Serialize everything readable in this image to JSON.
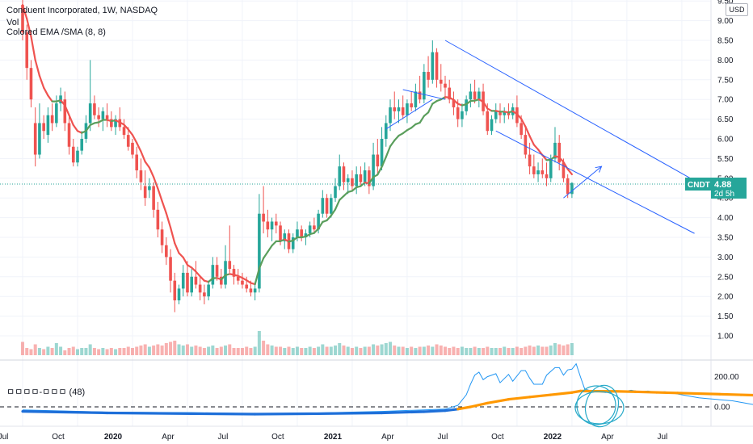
{
  "header": {
    "title": "Conduent Incorporated, 1W, NASDAQ",
    "vol_label": "Vol",
    "ema_label": "Colored EMA /SMA (8, 8)",
    "currency": "USD",
    "oscillator_label": "ㅁㅁㅁㅁ-ㅁㅁㅁ (48)"
  },
  "price_badge": {
    "symbol": "CNDT",
    "price": "4.88",
    "countdown": "2d 5h",
    "color": "#26a69a"
  },
  "colors": {
    "up": "#26a69a",
    "down": "#ef5350",
    "ema_down": "#ef5350",
    "ema_up": "#5a9e5c",
    "channel": "#2962ff",
    "osc_line": "#2196f3",
    "osc_smooth_up": "#ff9800",
    "osc_smooth_down": "#1e6fd9"
  },
  "chart_data": {
    "type": "candlestick",
    "price_ticks": [
      "9.50",
      "9.00",
      "8.50",
      "8.00",
      "7.50",
      "7.00",
      "6.50",
      "6.00",
      "5.50",
      "5.00",
      "4.50",
      "4.00",
      "3.50",
      "3.00",
      "2.50",
      "2.00",
      "1.50",
      "1.00"
    ],
    "osc_ticks": [
      "200.00",
      "0.00"
    ],
    "x_ticks": [
      {
        "label": "Jul",
        "bold": false
      },
      {
        "label": "Oct",
        "bold": false
      },
      {
        "label": "2020",
        "bold": true
      },
      {
        "label": "Apr",
        "bold": false
      },
      {
        "label": "Jul",
        "bold": false
      },
      {
        "label": "Oct",
        "bold": false
      },
      {
        "label": "2021",
        "bold": true
      },
      {
        "label": "Apr",
        "bold": false
      },
      {
        "label": "Jul",
        "bold": false
      },
      {
        "label": "Oct",
        "bold": false
      },
      {
        "label": "2022",
        "bold": true
      },
      {
        "label": "Apr",
        "bold": false
      },
      {
        "label": "Jul",
        "bold": false
      }
    ],
    "x_tick_weeks": [
      0,
      13,
      26,
      39,
      52,
      65,
      78,
      91,
      104,
      117,
      130,
      143,
      156
    ],
    "ohlc": [
      [
        9.4,
        9.6,
        8.5,
        8.7
      ],
      [
        8.7,
        8.9,
        7.5,
        7.8
      ],
      [
        7.8,
        8.0,
        6.8,
        7.0
      ],
      [
        6.4,
        6.8,
        5.3,
        5.6
      ],
      [
        5.6,
        6.9,
        5.5,
        6.4
      ],
      [
        6.4,
        6.6,
        6.0,
        6.2
      ],
      [
        6.1,
        6.8,
        5.9,
        6.6
      ],
      [
        6.6,
        6.9,
        6.2,
        6.4
      ],
      [
        6.4,
        7.1,
        6.3,
        6.9
      ],
      [
        6.9,
        7.3,
        6.7,
        7.1
      ],
      [
        7.0,
        7.2,
        6.2,
        6.4
      ],
      [
        6.4,
        6.6,
        5.6,
        5.8
      ],
      [
        5.8,
        6.0,
        5.3,
        5.4
      ],
      [
        5.4,
        5.8,
        5.3,
        5.7
      ],
      [
        5.7,
        6.2,
        5.6,
        6.0
      ],
      [
        6.0,
        6.6,
        5.9,
        6.4
      ],
      [
        6.4,
        8.0,
        6.2,
        6.9
      ],
      [
        6.9,
        7.1,
        6.5,
        6.6
      ],
      [
        6.6,
        6.8,
        6.3,
        6.5
      ],
      [
        6.5,
        6.8,
        6.2,
        6.7
      ],
      [
        6.6,
        6.9,
        6.3,
        6.5
      ],
      [
        6.5,
        6.7,
        6.2,
        6.3
      ],
      [
        6.3,
        6.6,
        6.1,
        6.5
      ],
      [
        6.5,
        6.8,
        6.2,
        6.3
      ],
      [
        6.3,
        6.5,
        6.0,
        6.1
      ],
      [
        6.1,
        6.3,
        5.7,
        5.8
      ],
      [
        5.9,
        6.0,
        5.5,
        5.6
      ],
      [
        5.6,
        5.8,
        5.0,
        5.2
      ],
      [
        5.2,
        5.5,
        4.7,
        4.9
      ],
      [
        4.8,
        5.2,
        4.3,
        4.5
      ],
      [
        4.7,
        5.0,
        4.5,
        4.8
      ],
      [
        4.8,
        4.9,
        4.0,
        4.2
      ],
      [
        4.2,
        4.4,
        3.5,
        3.7
      ],
      [
        3.7,
        3.9,
        3.1,
        3.3
      ],
      [
        3.3,
        3.5,
        2.8,
        3.0
      ],
      [
        3.0,
        3.2,
        2.1,
        2.4
      ],
      [
        2.4,
        2.6,
        1.6,
        1.9
      ],
      [
        1.9,
        2.3,
        1.8,
        2.2
      ],
      [
        2.2,
        2.8,
        2.0,
        2.6
      ],
      [
        2.6,
        2.9,
        2.0,
        2.1
      ],
      [
        2.1,
        2.7,
        2.0,
        2.5
      ],
      [
        2.5,
        2.9,
        2.2,
        2.3
      ],
      [
        2.3,
        2.5,
        1.9,
        2.1
      ],
      [
        2.1,
        2.3,
        1.8,
        2.0
      ],
      [
        2.0,
        2.4,
        1.9,
        2.3
      ],
      [
        2.3,
        3.0,
        2.2,
        2.8
      ],
      [
        2.8,
        3.0,
        2.4,
        2.5
      ],
      [
        2.5,
        2.7,
        2.2,
        2.3
      ],
      [
        2.3,
        3.3,
        2.2,
        2.9
      ],
      [
        2.9,
        3.8,
        2.6,
        2.7
      ],
      [
        2.7,
        2.8,
        2.3,
        2.5
      ],
      [
        2.5,
        2.7,
        2.3,
        2.4
      ],
      [
        2.4,
        2.6,
        2.2,
        2.3
      ],
      [
        2.3,
        2.5,
        2.1,
        2.2
      ],
      [
        2.2,
        2.4,
        2.0,
        2.1
      ],
      [
        2.1,
        2.3,
        1.9,
        2.2
      ],
      [
        2.2,
        4.6,
        2.1,
        4.1
      ],
      [
        4.1,
        4.8,
        3.6,
        3.9
      ],
      [
        3.9,
        4.2,
        3.5,
        3.7
      ],
      [
        3.7,
        4.0,
        3.4,
        3.9
      ],
      [
        3.9,
        4.1,
        3.6,
        3.8
      ],
      [
        3.8,
        3.9,
        3.3,
        3.4
      ],
      [
        3.4,
        3.7,
        3.2,
        3.6
      ],
      [
        3.6,
        3.7,
        3.1,
        3.2
      ],
      [
        3.2,
        3.6,
        3.1,
        3.5
      ],
      [
        3.5,
        3.9,
        3.4,
        3.7
      ],
      [
        3.7,
        3.8,
        3.4,
        3.5
      ],
      [
        3.5,
        3.7,
        3.3,
        3.6
      ],
      [
        3.6,
        3.9,
        3.5,
        3.8
      ],
      [
        3.8,
        4.0,
        3.6,
        3.7
      ],
      [
        3.7,
        4.2,
        3.6,
        4.1
      ],
      [
        4.1,
        4.7,
        4.0,
        4.5
      ],
      [
        4.5,
        4.6,
        4.0,
        4.1
      ],
      [
        4.1,
        4.6,
        4.0,
        4.5
      ],
      [
        4.5,
        5.0,
        4.4,
        4.8
      ],
      [
        4.8,
        5.6,
        4.7,
        5.3
      ],
      [
        5.3,
        5.4,
        4.7,
        4.9
      ],
      [
        4.9,
        5.1,
        4.6,
        5.0
      ],
      [
        5.0,
        5.2,
        4.7,
        4.8
      ],
      [
        4.8,
        5.3,
        4.6,
        5.1
      ],
      [
        5.1,
        5.3,
        4.8,
        4.9
      ],
      [
        4.9,
        5.4,
        4.8,
        5.2
      ],
      [
        5.2,
        5.3,
        4.6,
        4.8
      ],
      [
        4.8,
        5.9,
        4.7,
        5.6
      ],
      [
        5.6,
        6.0,
        5.1,
        5.3
      ],
      [
        5.3,
        6.3,
        5.2,
        6.0
      ],
      [
        6.0,
        6.6,
        5.8,
        6.4
      ],
      [
        6.4,
        7.0,
        6.2,
        6.8
      ],
      [
        6.8,
        7.2,
        6.5,
        6.7
      ],
      [
        6.7,
        7.0,
        6.4,
        6.8
      ],
      [
        6.8,
        7.1,
        6.5,
        6.6
      ],
      [
        6.6,
        7.0,
        6.4,
        6.9
      ],
      [
        6.9,
        7.2,
        6.7,
        6.8
      ],
      [
        6.8,
        7.4,
        6.7,
        7.2
      ],
      [
        7.2,
        7.6,
        6.9,
        7.0
      ],
      [
        7.0,
        7.9,
        6.9,
        7.7
      ],
      [
        7.7,
        8.1,
        7.3,
        7.5
      ],
      [
        7.5,
        8.5,
        7.4,
        8.2
      ],
      [
        8.2,
        8.3,
        7.3,
        7.5
      ],
      [
        7.5,
        7.9,
        7.2,
        7.4
      ],
      [
        7.4,
        7.6,
        7.0,
        7.3
      ],
      [
        7.3,
        7.5,
        6.9,
        7.0
      ],
      [
        7.0,
        7.2,
        6.6,
        6.8
      ],
      [
        6.8,
        7.0,
        6.3,
        6.5
      ],
      [
        6.5,
        6.9,
        6.3,
        6.7
      ],
      [
        6.7,
        7.1,
        6.6,
        7.0
      ],
      [
        7.0,
        7.4,
        6.8,
        7.2
      ],
      [
        7.2,
        7.5,
        6.9,
        7.0
      ],
      [
        7.0,
        7.3,
        6.8,
        7.2
      ],
      [
        7.2,
        7.4,
        6.6,
        6.7
      ],
      [
        6.7,
        6.9,
        6.1,
        6.2
      ],
      [
        6.2,
        6.6,
        6.1,
        6.5
      ],
      [
        6.5,
        6.9,
        6.4,
        6.7
      ],
      [
        6.7,
        6.9,
        6.4,
        6.6
      ],
      [
        6.6,
        6.8,
        6.4,
        6.7
      ],
      [
        6.7,
        6.9,
        6.5,
        6.6
      ],
      [
        6.6,
        6.9,
        6.5,
        6.8
      ],
      [
        6.8,
        7.1,
        6.3,
        6.4
      ],
      [
        6.4,
        6.6,
        6.0,
        6.1
      ],
      [
        6.1,
        6.3,
        5.5,
        5.6
      ],
      [
        5.6,
        5.9,
        5.1,
        5.3
      ],
      [
        5.3,
        5.6,
        5.0,
        5.1
      ],
      [
        5.1,
        5.4,
        4.9,
        5.2
      ],
      [
        5.2,
        5.5,
        5.0,
        5.1
      ],
      [
        5.1,
        5.4,
        4.8,
        5.0
      ],
      [
        5.0,
        5.6,
        4.9,
        5.5
      ],
      [
        5.5,
        6.3,
        5.4,
        5.9
      ],
      [
        5.9,
        6.1,
        5.2,
        5.4
      ],
      [
        5.4,
        5.5,
        4.9,
        5.0
      ],
      [
        5.0,
        5.1,
        4.5,
        4.6
      ],
      [
        4.6,
        4.9,
        4.5,
        4.88
      ]
    ],
    "ema": [
      9.4,
      9.05,
      8.6,
      8.0,
      7.6,
      7.3,
      7.1,
      6.95,
      6.95,
      6.98,
      6.85,
      6.6,
      6.35,
      6.2,
      6.15,
      6.2,
      6.35,
      6.4,
      6.42,
      6.48,
      6.48,
      6.45,
      6.47,
      6.42,
      6.36,
      6.24,
      6.1,
      5.9,
      5.68,
      5.42,
      5.27,
      5.03,
      4.74,
      4.42,
      4.11,
      3.75,
      3.35,
      3.1,
      2.99,
      2.8,
      2.73,
      2.63,
      2.51,
      2.4,
      2.37,
      2.46,
      2.47,
      2.43,
      2.54,
      2.57,
      2.55,
      2.52,
      2.47,
      2.41,
      2.34,
      2.31,
      2.71,
      2.97,
      3.13,
      3.29,
      3.4,
      3.4,
      3.45,
      3.39,
      3.42,
      3.5,
      3.5,
      3.52,
      3.58,
      3.61,
      3.72,
      3.89,
      3.93,
      4.05,
      4.21,
      4.45,
      4.55,
      4.65,
      4.68,
      4.77,
      4.8,
      4.89,
      4.87,
      5.03,
      5.09,
      5.29,
      5.54,
      5.81,
      5.96,
      6.08,
      6.14,
      6.22,
      6.28,
      6.37,
      6.41,
      6.58,
      6.67,
      6.89,
      6.96,
      7.0,
      7.06,
      7.05,
      6.99,
      6.89,
      6.85,
      6.88,
      6.96,
      6.97,
      7.0,
      6.94,
      6.77,
      6.71,
      6.71,
      6.69,
      6.69,
      6.67,
      6.7,
      6.63,
      6.51,
      6.31,
      6.07,
      5.85,
      5.73,
      5.59,
      5.46,
      5.47,
      5.56,
      5.53,
      5.41,
      5.23,
      5.1
    ],
    "volume": [
      0.55,
      0.3,
      0.25,
      0.45,
      0.3,
      0.25,
      0.35,
      0.3,
      0.5,
      0.35,
      0.2,
      0.3,
      0.35,
      0.25,
      0.3,
      0.3,
      0.45,
      0.3,
      0.25,
      0.3,
      0.25,
      0.3,
      0.25,
      0.3,
      0.3,
      0.35,
      0.3,
      0.35,
      0.4,
      0.45,
      0.35,
      0.4,
      0.45,
      0.4,
      0.5,
      0.55,
      0.6,
      0.45,
      0.4,
      0.45,
      0.35,
      0.4,
      0.35,
      0.3,
      0.35,
      0.4,
      0.3,
      0.35,
      0.4,
      0.45,
      0.3,
      0.3,
      0.3,
      0.35,
      0.3,
      0.35,
      1.0,
      0.6,
      0.45,
      0.4,
      0.35,
      0.35,
      0.3,
      0.35,
      0.3,
      0.35,
      0.3,
      0.3,
      0.35,
      0.3,
      0.35,
      0.45,
      0.35,
      0.35,
      0.4,
      0.5,
      0.4,
      0.35,
      0.3,
      0.35,
      0.3,
      0.35,
      0.35,
      0.45,
      0.4,
      0.45,
      0.5,
      0.55,
      0.4,
      0.35,
      0.35,
      0.3,
      0.35,
      0.3,
      0.35,
      0.35,
      0.4,
      0.35,
      0.45,
      0.4,
      0.35,
      0.3,
      0.35,
      0.3,
      0.35,
      0.3,
      0.3,
      0.35,
      0.3,
      0.3,
      0.35,
      0.3,
      0.3,
      0.3,
      0.35,
      0.3,
      0.3,
      0.35,
      0.3,
      0.35,
      0.4,
      0.35,
      0.4,
      0.35,
      0.35,
      0.4,
      0.5,
      0.45,
      0.4,
      0.45,
      0.5
    ],
    "oscillator": {
      "raw": [
        [
          0,
          -20
        ],
        [
          20,
          -35
        ],
        [
          40,
          -38
        ],
        [
          55,
          -45
        ],
        [
          70,
          -40
        ],
        [
          85,
          -30
        ],
        [
          95,
          -20
        ],
        [
          100,
          -15
        ],
        [
          103,
          10
        ],
        [
          105,
          80
        ],
        [
          106,
          150
        ],
        [
          107,
          210
        ],
        [
          108,
          230
        ],
        [
          109,
          180
        ],
        [
          110,
          200
        ],
        [
          112,
          220
        ],
        [
          113,
          160
        ],
        [
          115,
          215
        ],
        [
          116,
          170
        ],
        [
          118,
          240
        ],
        [
          119,
          240
        ],
        [
          120,
          190
        ],
        [
          121,
          150
        ],
        [
          123,
          150
        ],
        [
          124,
          210
        ],
        [
          126,
          260
        ],
        [
          127,
          260
        ],
        [
          128,
          210
        ],
        [
          129,
          245
        ],
        [
          130,
          250
        ],
        [
          131,
          285
        ],
        [
          132,
          200
        ],
        [
          133,
          120
        ],
        [
          134,
          110
        ],
        [
          136,
          100
        ],
        [
          138,
          95
        ],
        [
          140,
          105
        ],
        [
          142,
          100
        ],
        [
          144,
          110
        ],
        [
          146,
          100
        ],
        [
          148,
          105
        ],
        [
          150,
          95
        ],
        [
          152,
          100
        ],
        [
          154,
          90
        ],
        [
          156,
          80
        ],
        [
          158,
          70
        ],
        [
          160,
          60
        ],
        [
          162,
          55
        ],
        [
          164,
          50
        ],
        [
          166,
          45
        ],
        [
          168,
          40
        ],
        [
          170,
          30
        ],
        [
          172,
          20
        ],
        [
          174,
          10
        ],
        [
          176,
          5
        ],
        [
          178,
          -10
        ],
        [
          180,
          0
        ]
      ],
      "smooth": [
        [
          0,
          -30
        ],
        [
          20,
          -40
        ],
        [
          40,
          -45
        ],
        [
          55,
          -48
        ],
        [
          70,
          -45
        ],
        [
          85,
          -40
        ],
        [
          95,
          -32
        ],
        [
          100,
          -25
        ],
        [
          103,
          -15
        ],
        [
          106,
          0
        ],
        [
          110,
          25
        ],
        [
          115,
          50
        ],
        [
          120,
          65
        ],
        [
          125,
          80
        ],
        [
          130,
          95
        ],
        [
          132,
          105
        ],
        [
          135,
          104
        ],
        [
          140,
          103
        ],
        [
          145,
          100
        ],
        [
          150,
          96
        ],
        [
          155,
          92
        ],
        [
          160,
          88
        ],
        [
          165,
          84
        ],
        [
          170,
          80
        ],
        [
          175,
          76
        ],
        [
          180,
          70
        ]
      ]
    },
    "channel": {
      "upper": [
        [
          100,
          8.5
        ],
        [
          163,
          4.7
        ]
      ],
      "lower": [
        [
          112,
          6.2
        ],
        [
          159,
          3.6
        ]
      ],
      "inner_top": [
        [
          90,
          7.25
        ],
        [
          100,
          7.0
        ]
      ],
      "inner_bottom": [
        [
          86,
          6.25
        ],
        [
          97,
          7.0
        ]
      ],
      "arrow": [
        [
          128,
          4.5
        ],
        [
          137,
          5.3
        ]
      ]
    }
  }
}
